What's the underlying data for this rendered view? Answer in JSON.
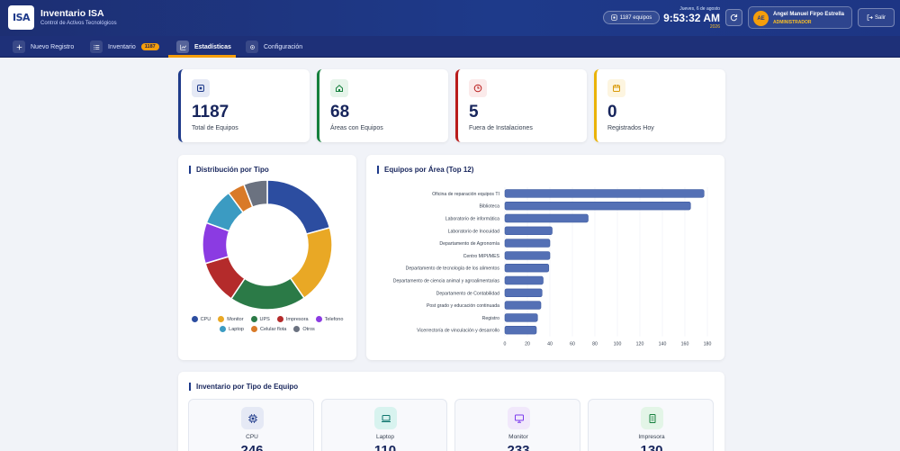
{
  "header": {
    "logo_text": "ISA",
    "title": "Inventario ISA",
    "subtitle": "Control de Activos Tecnológicos",
    "count_pill": "1187 equipos",
    "date_line": "Jueves, 6 de agosto",
    "time": "9:53:32 AM",
    "year": "2026",
    "user": {
      "initials": "AE",
      "name": "Angel Manuel Firpo Estrella",
      "role": "ADMINISTRADOR"
    },
    "logout_label": "Salir"
  },
  "nav": {
    "new_label": "Nuevo Registro",
    "inventory_label": "Inventario",
    "inventory_badge": "1187",
    "stats_label": "Estadísticas",
    "config_label": "Configuración"
  },
  "stats": [
    {
      "value": "1187",
      "label": "Total de Equipos",
      "color": "#1e3a8a",
      "icon": "device-icon"
    },
    {
      "value": "68",
      "label": "Áreas con Equipos",
      "color": "#15803d",
      "icon": "home-icon"
    },
    {
      "value": "5",
      "label": "Fuera de Instalaciones",
      "color": "#b91c1c",
      "icon": "clock-icon"
    },
    {
      "value": "0",
      "label": "Registrados Hoy",
      "color": "#eab308",
      "icon": "calendar-icon"
    }
  ],
  "donut": {
    "title": "Distribución por Tipo",
    "legend": [
      "CPU",
      "Monitor",
      "UPS",
      "Impresora",
      "Telefono",
      "Laptop",
      "Celular flota",
      "Otros"
    ]
  },
  "bars_panel": {
    "title": "Equipos por Área (Top 12)"
  },
  "types_panel": {
    "title": "Inventario por Tipo de Equipo",
    "cards": [
      {
        "label": "CPU",
        "value": "246",
        "icon": "cpu-icon"
      },
      {
        "label": "Laptop",
        "value": "110",
        "icon": "laptop-icon"
      },
      {
        "label": "Monitor",
        "value": "233",
        "icon": "monitor-icon"
      },
      {
        "label": "Impresora",
        "value": "130",
        "icon": "printer-icon"
      }
    ]
  },
  "chart_data": [
    {
      "type": "pie",
      "title": "Distribución por Tipo",
      "categories": [
        "CPU",
        "Monitor",
        "UPS",
        "Impresora",
        "Telefono",
        "Laptop",
        "Celular flota",
        "Otros"
      ],
      "values": [
        246,
        233,
        226,
        130,
        121,
        110,
        51,
        70
      ],
      "colors": [
        "#2c4da0",
        "#e9a825",
        "#2b7a47",
        "#b42b2b",
        "#8b3be2",
        "#3b9bc2",
        "#d97a28",
        "#6b7280"
      ],
      "legend": "bottom"
    },
    {
      "type": "bar",
      "orientation": "horizontal",
      "title": "Equipos por Área (Top 12)",
      "categories": [
        "Oficina de reparación equipos TI",
        "Biblioteca",
        "Laboratorio de informática",
        "Laboratorio de Inocuidad",
        "Departamento de Agronomía",
        "Centro MIPI/MES",
        "Departamento de tecnología de los alimentos",
        "Departamento de ciencia animal y agroalimentarias",
        "Departamento de Contabilidad",
        "Post grado y educación continuada",
        "Registro",
        "Vicerrectoría de vinculación y desarrollo"
      ],
      "values": [
        177,
        165,
        74,
        42,
        40,
        40,
        39,
        34,
        33,
        32,
        29,
        28
      ],
      "xlim": [
        0,
        180
      ],
      "xticks": [
        0,
        20,
        40,
        60,
        80,
        100,
        120,
        140,
        160,
        180
      ],
      "color": "#5470b5",
      "grid": true
    }
  ]
}
